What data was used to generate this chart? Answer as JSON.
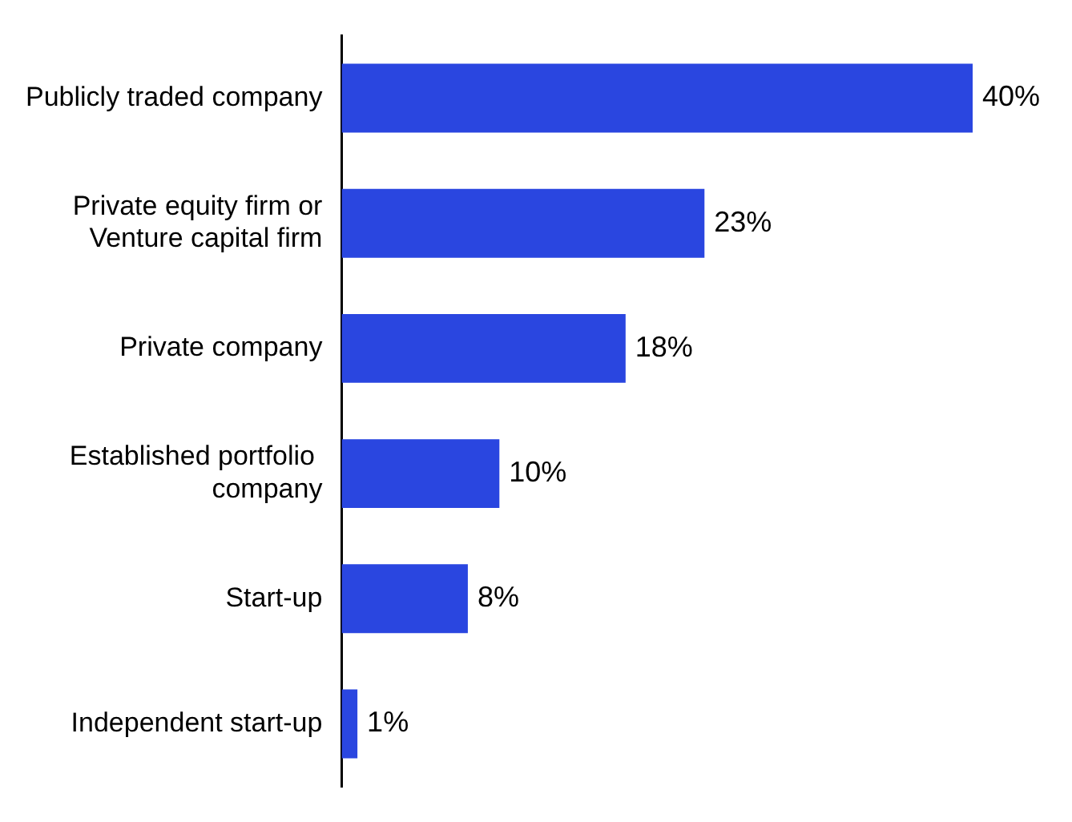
{
  "chart_data": {
    "type": "bar",
    "orientation": "horizontal",
    "categories": [
      "Publicly traded company",
      "Private equity firm or\nVenture capital firm",
      "Private company",
      "Established portfolio \ncompany",
      "Start-up",
      "Independent start-up"
    ],
    "values": [
      40,
      23,
      18,
      10,
      8,
      1
    ],
    "value_labels": [
      "40%",
      "23%",
      "18%",
      "10%",
      "8%",
      "1%"
    ],
    "color": "#2a46e0"
  }
}
